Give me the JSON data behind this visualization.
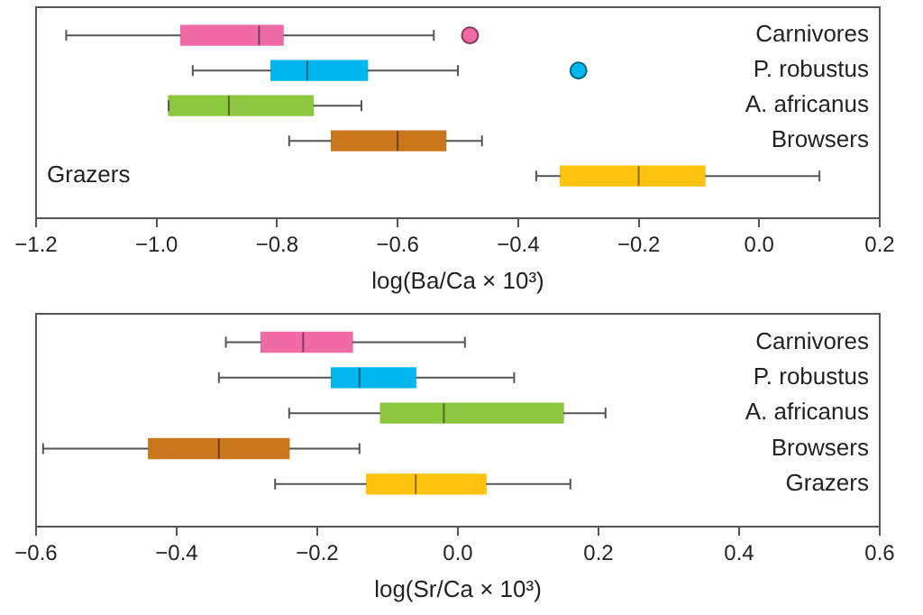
{
  "chart_data": [
    {
      "type": "box",
      "orientation": "horizontal",
      "xlabel": "log(Ba/Ca × 10³)",
      "categories": [
        "Carnivores",
        "P. robustus",
        "A. africanus",
        "Browsers",
        "Grazers"
      ],
      "colors": [
        "#f06aa6",
        "#00b6ec",
        "#8dc63f",
        "#c9761c",
        "#ffc20e"
      ],
      "boxes": [
        {
          "low": -1.15,
          "q1": -0.96,
          "median": -0.83,
          "q3": -0.79,
          "high": -0.54,
          "outliers": [
            -0.48
          ]
        },
        {
          "low": -0.94,
          "q1": -0.81,
          "median": -0.75,
          "q3": -0.65,
          "high": -0.5,
          "outliers": [
            -0.3
          ]
        },
        {
          "low": -0.98,
          "q1": -0.98,
          "median": -0.88,
          "q3": -0.74,
          "high": -0.66
        },
        {
          "low": -0.78,
          "q1": -0.71,
          "median": -0.6,
          "q3": -0.52,
          "high": -0.46
        },
        {
          "low": -0.37,
          "q1": -0.33,
          "median": -0.2,
          "q3": -0.09,
          "high": 0.1
        }
      ],
      "xlim": [
        -1.2,
        0.2
      ],
      "xticks": [
        {
          "value": -1.2,
          "label": "−1.2"
        },
        {
          "value": -1.0,
          "label": "−1.0"
        },
        {
          "value": -0.8,
          "label": "−0.8"
        },
        {
          "value": -0.6,
          "label": "−0.6"
        },
        {
          "value": -0.4,
          "label": "−0.4"
        },
        {
          "value": -0.2,
          "label": "−0.2"
        },
        {
          "value": 0,
          "label": "0.0"
        },
        {
          "value": 0.2,
          "label": "0.2"
        }
      ],
      "grid": false,
      "legend": false
    },
    {
      "type": "box",
      "orientation": "horizontal",
      "xlabel": "log(Sr/Ca × 10³)",
      "categories": [
        "Carnivores",
        "P. robustus",
        "A. africanus",
        "Browsers",
        "Grazers"
      ],
      "colors": [
        "#f06aa6",
        "#00b6ec",
        "#8dc63f",
        "#c9761c",
        "#ffc20e"
      ],
      "boxes": [
        {
          "low": -0.33,
          "q1": -0.28,
          "median": -0.22,
          "q3": -0.15,
          "high": 0.01
        },
        {
          "low": -0.34,
          "q1": -0.18,
          "median": -0.14,
          "q3": -0.06,
          "high": 0.08
        },
        {
          "low": -0.24,
          "q1": -0.11,
          "median": -0.02,
          "q3": 0.15,
          "high": 0.21
        },
        {
          "low": -0.59,
          "q1": -0.44,
          "median": -0.34,
          "q3": -0.24,
          "high": -0.14
        },
        {
          "low": -0.26,
          "q1": -0.13,
          "median": -0.06,
          "q3": 0.04,
          "high": 0.16
        }
      ],
      "xlim": [
        -0.6,
        0.6
      ],
      "xticks": [
        {
          "value": -0.6,
          "label": "−0.6"
        },
        {
          "value": -0.4,
          "label": "−0.4"
        },
        {
          "value": -0.2,
          "label": "−0.2"
        },
        {
          "value": 0,
          "label": "0.0"
        },
        {
          "value": 0.2,
          "label": "0.2"
        },
        {
          "value": 0.4,
          "label": "0.4"
        },
        {
          "value": 0.6,
          "label": "0.6"
        }
      ],
      "grid": false,
      "legend": false
    }
  ]
}
